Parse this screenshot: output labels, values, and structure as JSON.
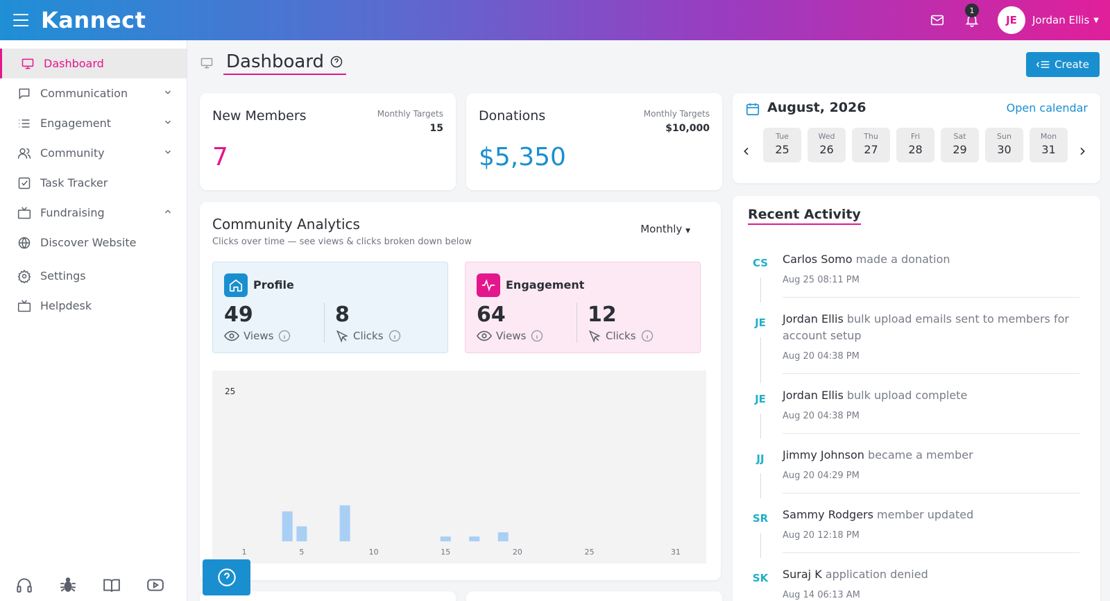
{
  "app": {
    "brand": "Kannect"
  },
  "header": {
    "notification_count": "1",
    "user_initials": "JE",
    "user_name": "Jordan Ellis",
    "gradient_start": "#1f8fd6",
    "gradient_end": "#e01f9a"
  },
  "sidebar": {
    "items": [
      {
        "label": "Dashboard",
        "icon": "monitor-icon",
        "active": true
      },
      {
        "label": "Communication",
        "icon": "chat-icon",
        "chevron": "down"
      },
      {
        "label": "Engagement",
        "icon": "list-icon",
        "chevron": "down"
      },
      {
        "label": "Community",
        "icon": "users-icon",
        "chevron": "down"
      },
      {
        "label": "Task Tracker",
        "icon": "checkbox-icon"
      },
      {
        "label": "Fundraising",
        "icon": "tv-icon",
        "chevron": "up"
      },
      {
        "label": "Discover Website",
        "icon": "globe-icon"
      },
      {
        "label": "Settings",
        "icon": "gear-icon"
      },
      {
        "label": "Helpdesk",
        "icon": "tv-icon"
      }
    ],
    "bottom_icons": [
      "headset-icon",
      "bug-icon",
      "book-icon",
      "youtube-icon"
    ]
  },
  "page": {
    "title": "Dashboard",
    "create_label": "Create"
  },
  "stats": {
    "new_members": {
      "title": "New Members",
      "target_label": "Monthly Targets",
      "target_value": "15",
      "value": "7",
      "color": "#e3168e"
    },
    "donations": {
      "title": "Donations",
      "target_label": "Monthly Targets",
      "target_value": "$10,000",
      "value": "$5,350",
      "color": "#1a8fd0"
    }
  },
  "calendar": {
    "month": "August, 2026",
    "open_label": "Open calendar",
    "days": [
      {
        "name": "Tue",
        "num": "25"
      },
      {
        "name": "Wed",
        "num": "26"
      },
      {
        "name": "Thu",
        "num": "27"
      },
      {
        "name": "Fri",
        "num": "28"
      },
      {
        "name": "Sat",
        "num": "29"
      },
      {
        "name": "Sun",
        "num": "30"
      },
      {
        "name": "Mon",
        "num": "31"
      }
    ]
  },
  "analytics": {
    "title": "Community Analytics",
    "subtitle": "Clicks over time — see views & clicks broken down below",
    "period": "Monthly",
    "profile": {
      "label": "Profile",
      "views": "49",
      "views_label": "Views",
      "clicks": "8",
      "clicks_label": "Clicks"
    },
    "engagement": {
      "label": "Engagement",
      "views": "64",
      "views_label": "Views",
      "clicks": "12",
      "clicks_label": "Clicks"
    }
  },
  "chart_data": {
    "type": "bar",
    "x_ticks": [
      "1",
      "5",
      "10",
      "15",
      "20",
      "25",
      "31"
    ],
    "ylim": [
      0,
      25
    ],
    "y_ticks": [
      "25"
    ],
    "bar_color": "#a9cff5",
    "bars": [
      {
        "day": 4,
        "value": 5
      },
      {
        "day": 5,
        "value": 2.5
      },
      {
        "day": 8,
        "value": 6
      },
      {
        "day": 15,
        "value": 0.8
      },
      {
        "day": 17,
        "value": 0.8
      },
      {
        "day": 19,
        "value": 1.5
      }
    ]
  },
  "recent_activity": {
    "title": "Recent Activity",
    "items": [
      {
        "initials": "CS",
        "name": "Carlos Somo",
        "action": "made a donation",
        "time": "Aug 25 08:11 PM"
      },
      {
        "initials": "JE",
        "name": "Jordan Ellis",
        "action": "bulk upload emails sent to members for account setup",
        "time": "Aug 20 04:38 PM"
      },
      {
        "initials": "JE",
        "name": "Jordan Ellis",
        "action": "bulk upload complete",
        "time": "Aug 20 04:38 PM"
      },
      {
        "initials": "JJ",
        "name": "Jimmy Johnson",
        "action": "became a member",
        "time": "Aug 20 04:29 PM"
      },
      {
        "initials": "SR",
        "name": "Sammy Rodgers",
        "action": "member updated",
        "time": "Aug 20 12:18 PM"
      },
      {
        "initials": "SK",
        "name": "Suraj K",
        "action": "application denied",
        "time": "Aug 14 06:13 AM"
      }
    ]
  }
}
